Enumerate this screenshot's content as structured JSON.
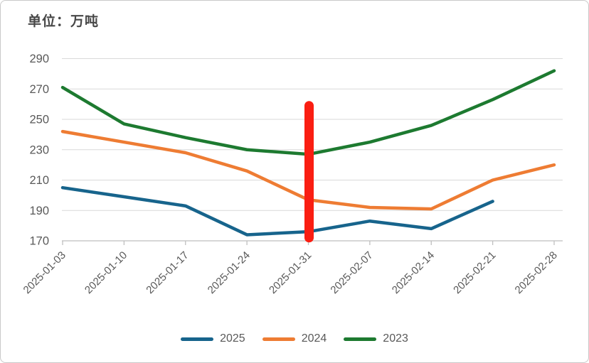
{
  "chart_data": {
    "type": "line",
    "title": "单位：万吨",
    "categories": [
      "2025-01-03",
      "2025-01-10",
      "2025-01-17",
      "2025-01-24",
      "2025-01-31",
      "2025-02-07",
      "2025-02-14",
      "2025-02-21",
      "2025-02-28"
    ],
    "series": [
      {
        "name": "2025",
        "color": "#17648c",
        "values": [
          205,
          199,
          193,
          174,
          176,
          183,
          178,
          196,
          null
        ]
      },
      {
        "name": "2024",
        "color": "#ee7c33",
        "values": [
          242,
          235,
          228,
          216,
          197,
          192,
          191,
          210,
          220
        ]
      },
      {
        "name": "2023",
        "color": "#1d7a30",
        "values": [
          271,
          247,
          238,
          230,
          227,
          235,
          246,
          263,
          282
        ]
      }
    ],
    "annotation": {
      "type": "vertical-bar",
      "category": "2025-01-31",
      "value_from": 172,
      "value_to": 259,
      "color": "#fa1e12"
    },
    "ylim": [
      170,
      290
    ],
    "y_ticks": [
      170,
      190,
      210,
      230,
      250,
      270,
      290
    ],
    "xlabel": "",
    "ylabel": "",
    "x_label_rotation": -45,
    "grid": "horizontal",
    "legend_position": "bottom",
    "styles": {
      "grid_color": "#d9d9d9",
      "axis_color": "#bfbfbf",
      "label_color": "#595959",
      "title_color": "#474747",
      "background": "#ffffff",
      "panel_border_color": "#c9c9c9"
    }
  }
}
